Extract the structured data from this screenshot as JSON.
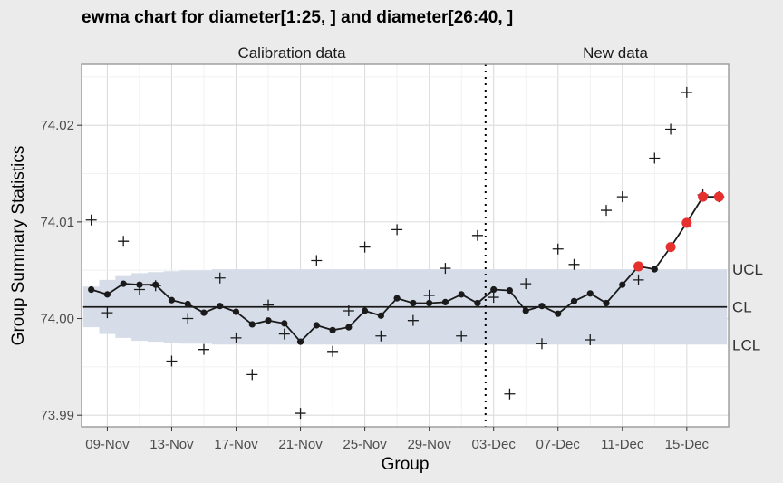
{
  "chart_data": {
    "type": "line",
    "title": "ewma chart for diameter[1:25, ] and diameter[26:40, ]",
    "xlabel": "Group",
    "ylabel": "Group Summary Statistics",
    "sections": [
      "Calibration data",
      "New data"
    ],
    "x_tick_labels": [
      "09-Nov",
      "13-Nov",
      "17-Nov",
      "21-Nov",
      "25-Nov",
      "29-Nov",
      "03-Dec",
      "07-Dec",
      "11-Dec",
      "15-Dec"
    ],
    "x_tick_groups": [
      2,
      6,
      10,
      14,
      18,
      22,
      26,
      30,
      34,
      38
    ],
    "y_ticks": [
      73.99,
      74.0,
      74.01,
      74.02
    ],
    "y_tick_labels": [
      "73.99",
      "74.00",
      "74.01",
      "74.02"
    ],
    "xlim": [
      0.4,
      40.6
    ],
    "ylim": [
      73.9888,
      74.0263
    ],
    "calibration_groups": 25,
    "center_line": 74.0012,
    "limit_labels": [
      "UCL",
      "CL",
      "LCL"
    ],
    "ucl": [
      74.0033,
      74.004,
      74.0044,
      74.0047,
      74.0048,
      74.0049,
      74.005,
      74.005,
      74.0051,
      74.0051,
      74.0051,
      74.0051,
      74.0051,
      74.0051,
      74.0051,
      74.0051,
      74.0051,
      74.0051,
      74.0051,
      74.0051,
      74.0051,
      74.0051,
      74.0051,
      74.0051,
      74.0051,
      74.0051,
      74.0051,
      74.0051,
      74.0051,
      74.0051,
      74.0051,
      74.0051,
      74.0051,
      74.0051,
      74.0051,
      74.0051,
      74.0051,
      74.0051,
      74.0051,
      74.0051
    ],
    "lcl": [
      73.9991,
      73.9984,
      73.998,
      73.9977,
      73.9976,
      73.9975,
      73.9974,
      73.9974,
      73.9973,
      73.9973,
      73.9973,
      73.9973,
      73.9973,
      73.9973,
      73.9973,
      73.9973,
      73.9973,
      73.9973,
      73.9973,
      73.9973,
      73.9973,
      73.9973,
      73.9973,
      73.9973,
      73.9973,
      73.9973,
      73.9973,
      73.9973,
      73.9973,
      73.9973,
      73.9973,
      73.9973,
      73.9973,
      73.9973,
      73.9973,
      73.9973,
      73.9973,
      73.9973,
      73.9973,
      73.9973
    ],
    "statistics": [
      74.0102,
      74.0006,
      74.008,
      74.003,
      74.0034,
      73.9956,
      74.0,
      73.9968,
      74.0042,
      73.998,
      73.9942,
      74.0014,
      73.9984,
      73.9902,
      74.006,
      73.9966,
      74.0008,
      74.0074,
      73.9982,
      74.0092,
      73.9998,
      74.0024,
      74.0052,
      73.9982,
      74.0086,
      74.0022,
      73.9922,
      74.0036,
      73.9974,
      74.0072,
      74.0056,
      73.9978,
      74.0112,
      74.0126,
      74.004,
      74.0166,
      74.0196,
      74.0234,
      74.0128,
      74.0126
    ],
    "ewma": [
      74.003,
      74.0025,
      74.0036,
      74.0035,
      74.0035,
      74.0019,
      74.0015,
      74.0006,
      74.0013,
      74.0007,
      73.9994,
      73.9998,
      73.9995,
      73.9976,
      73.9993,
      73.9988,
      73.9991,
      74.0008,
      74.0003,
      74.0021,
      74.0016,
      74.0016,
      74.0017,
      74.0025,
      74.0016,
      74.003,
      74.0029,
      74.0008,
      74.0013,
      74.0005,
      74.0018,
      74.0026,
      74.0016,
      74.0035,
      74.0054,
      74.0051,
      74.0074,
      74.0099,
      74.0126,
      74.0126
    ],
    "violating_groups": [
      35,
      37,
      38,
      39,
      40
    ],
    "colors": {
      "panel": "#ffffff",
      "background": "#ebebeb",
      "band": "#d6dde9",
      "grid": "#dcdcdc",
      "line": "#1a1a1a",
      "violation": "#e5302d"
    }
  }
}
